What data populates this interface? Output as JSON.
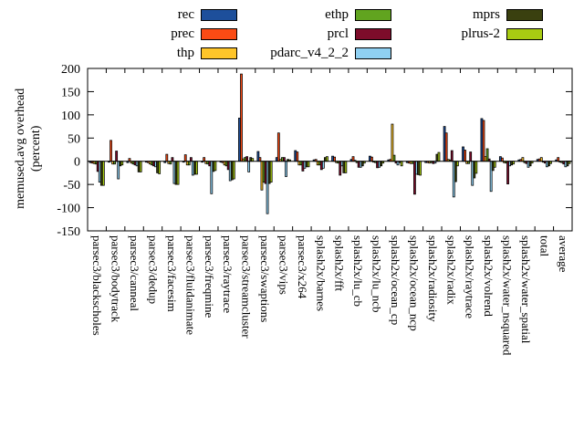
{
  "figure": {
    "ylabel_line1": "memused.avg overhead",
    "ylabel_line2": "(percent)"
  },
  "chart_data": {
    "type": "bar",
    "title": "",
    "xlabel": "",
    "ylabel": "memused.avg overhead (percent)",
    "ylim": [
      -150,
      200
    ],
    "yticks": [
      -150,
      -100,
      -50,
      0,
      50,
      100,
      150,
      200
    ],
    "grid": false,
    "legend_position": "top-outside, 3 columns",
    "bar_outline_color": "#000000",
    "background_color": "#ffffff",
    "categories": [
      "parsec3/blackscholes",
      "parsec3/bodytrack",
      "parsec3/canneal",
      "parsec3/dedup",
      "parsec3/facesim",
      "parsec3/fluidanimate",
      "parsec3/freqmine",
      "parsec3/raytrace",
      "parsec3/streamcluster",
      "parsec3/swaptions",
      "parsec3/vips",
      "parsec3/x264",
      "splash2x/barnes",
      "splash2x/fft",
      "splash2x/lu_cb",
      "splash2x/lu_ncb",
      "splash2x/ocean_cp",
      "splash2x/ocean_ncp",
      "splash2x/radiosity",
      "splash2x/radix",
      "splash2x/raytrace",
      "splash2x/volrend",
      "splash2x/water_nsquared",
      "splash2x/water_spatial",
      "total",
      "average"
    ],
    "series": [
      {
        "name": "rec",
        "color": "#1d4f9b",
        "values": [
          -3,
          -2,
          -3,
          -2,
          -3,
          -2,
          -2,
          -2,
          93,
          21,
          8,
          23,
          3,
          11,
          4,
          11,
          3,
          -3,
          -3,
          75,
          31,
          92,
          10,
          3,
          4,
          3
        ]
      },
      {
        "name": "prec",
        "color": "#fb4b14",
        "values": [
          -4,
          45,
          6,
          -3,
          15,
          14,
          8,
          -3,
          188,
          8,
          61,
          20,
          4,
          9,
          10,
          9,
          4,
          -4,
          -3,
          61,
          24,
          88,
          7,
          4,
          5,
          8
        ]
      },
      {
        "name": "thp",
        "color": "#fec52a",
        "values": [
          -5,
          -6,
          -4,
          -6,
          -5,
          -8,
          -5,
          -8,
          5,
          -62,
          4,
          -8,
          -8,
          -3,
          2,
          -2,
          80,
          -5,
          -4,
          4,
          -5,
          10,
          -3,
          8,
          8,
          -2
        ]
      },
      {
        "name": "ethp",
        "color": "#61a41f",
        "values": [
          -6,
          -6,
          -6,
          -8,
          -6,
          -8,
          -6,
          -10,
          8,
          -45,
          8,
          -8,
          -8,
          -4,
          -3,
          -3,
          13,
          -5,
          -3,
          3,
          -5,
          27,
          -4,
          -3,
          -2,
          -3
        ]
      },
      {
        "name": "prcl",
        "color": "#7d0c2a",
        "values": [
          -22,
          22,
          -8,
          -10,
          8,
          8,
          -10,
          -18,
          10,
          -48,
          8,
          -21,
          -18,
          -30,
          -13,
          -14,
          -4,
          -71,
          -5,
          23,
          20,
          5,
          -49,
          -5,
          -4,
          -6
        ]
      },
      {
        "name": "pdarc_v4_2_2",
        "color": "#8fd0f2",
        "values": [
          -45,
          -38,
          -10,
          -12,
          -48,
          -30,
          -70,
          -42,
          -23,
          -113,
          -33,
          -15,
          -15,
          -10,
          -13,
          -13,
          -8,
          -28,
          -4,
          -77,
          -52,
          -65,
          -10,
          -13,
          -12,
          -12
        ]
      },
      {
        "name": "mprs",
        "color": "#3a400f",
        "values": [
          -52,
          -10,
          -23,
          -25,
          -50,
          -28,
          -22,
          -40,
          8,
          -48,
          4,
          -12,
          8,
          -25,
          -10,
          -10,
          -3,
          -29,
          15,
          -44,
          -36,
          -20,
          -8,
          -10,
          -10,
          -10
        ]
      },
      {
        "name": "plrus-2",
        "color": "#a8cb12",
        "values": [
          -52,
          -8,
          -23,
          -27,
          -50,
          -28,
          -20,
          -38,
          6,
          -45,
          3,
          -12,
          10,
          -25,
          -4,
          -4,
          -10,
          -30,
          19,
          -10,
          -26,
          -13,
          -6,
          -4,
          -5,
          -5
        ]
      }
    ],
    "legend_columns": [
      [
        0,
        1,
        2
      ],
      [
        3,
        4,
        5
      ],
      [
        6,
        7
      ]
    ]
  }
}
